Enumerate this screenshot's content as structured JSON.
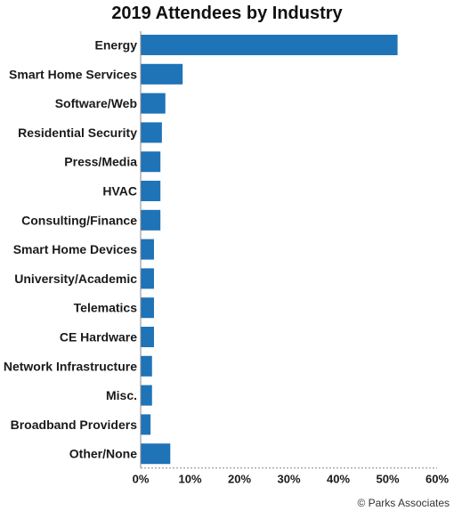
{
  "chart_data": {
    "type": "bar",
    "orientation": "horizontal",
    "title": "2019 Attendees by Industry",
    "categories": [
      "Energy",
      "Smart Home Services",
      "Software/Web",
      "Residential Security",
      "Press/Media",
      "HVAC",
      "Consulting/Finance",
      "Smart Home Devices",
      "University/Academic",
      "Telematics",
      "CE Hardware",
      "Network Infrastructure",
      "Misc.",
      "Broadband Providers",
      "Other/None"
    ],
    "values": [
      52,
      8.5,
      5,
      4.3,
      4,
      4,
      4,
      2.7,
      2.7,
      2.7,
      2.7,
      2.3,
      2.3,
      2,
      6
    ],
    "xlim": [
      0,
      60
    ],
    "ticks": [
      0,
      10,
      20,
      30,
      40,
      50,
      60
    ],
    "tick_labels": [
      "0%",
      "10%",
      "20%",
      "30%",
      "40%",
      "50%",
      "60%"
    ],
    "color": "#1f73b7",
    "grid": false
  },
  "source": "© Parks Associates"
}
